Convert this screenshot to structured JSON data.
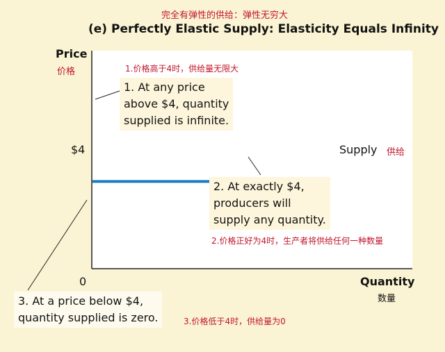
{
  "chart_data": {
    "type": "line",
    "title": "(e) Perfectly Elastic Supply: Elasticity Equals Infinity",
    "title_cn": "完全有弹性的供给：弹性无穷大",
    "ylabel": "Price",
    "ylabel_cn": "价格",
    "xlabel": "Quantity",
    "xlabel_cn": "数量",
    "origin_label": "0",
    "y_ticks": [
      {
        "value": 4,
        "label": "$4"
      }
    ],
    "ylim": [
      0,
      10
    ],
    "xlim": [
      0,
      100
    ],
    "series": [
      {
        "name": "Supply",
        "name_cn": "供给",
        "color": "#1a7cc1",
        "x": [
          0,
          73.5
        ],
        "y": [
          4,
          4
        ]
      }
    ],
    "grid": false,
    "annotations": [
      {
        "lines": [
          "1. At any price",
          "above $4, quantity",
          "supplied is infinite."
        ],
        "cn": "1.价格高于4时，供给量无限大"
      },
      {
        "lines": [
          "2. At exactly $4,",
          "producers will",
          "supply any quantity."
        ],
        "cn": "2.价格正好为4时，生产者将供给任何一种数量"
      },
      {
        "lines": [
          "3. At a price below $4,",
          "quantity supplied is zero."
        ],
        "cn": "3.价格低于4时，供给量为0"
      }
    ]
  }
}
